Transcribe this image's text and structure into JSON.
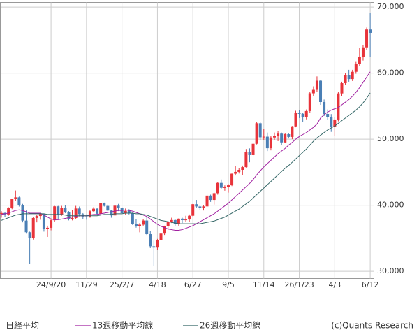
{
  "chart_data": {
    "type": "candlestick",
    "title": "日経平均",
    "credit": "(c)Quants Research",
    "up_color": "#e8333a",
    "down_color": "#4a7fb5",
    "grid": true,
    "legend": "bottom",
    "ylim": [
      28900,
      70700
    ],
    "yticks": [
      {
        "value": 30000,
        "label": "30,000"
      },
      {
        "value": 40000,
        "label": "40,000"
      },
      {
        "value": 50000,
        "label": "50,000"
      },
      {
        "value": 60000,
        "label": "60,000"
      },
      {
        "value": 70000,
        "label": "70,000"
      }
    ],
    "categories": [
      null,
      null,
      null,
      null,
      null,
      null,
      null,
      null,
      null,
      null,
      null,
      null,
      null,
      null,
      "24/9/20",
      null,
      null,
      null,
      null,
      null,
      null,
      null,
      null,
      null,
      "11/29",
      null,
      null,
      null,
      null,
      null,
      null,
      null,
      null,
      null,
      "25/2/7",
      null,
      null,
      null,
      null,
      null,
      null,
      null,
      null,
      null,
      "4/18",
      null,
      null,
      null,
      null,
      null,
      null,
      null,
      null,
      null,
      "6/27",
      null,
      null,
      null,
      null,
      null,
      null,
      null,
      null,
      null,
      "9/5",
      null,
      null,
      null,
      null,
      null,
      null,
      null,
      null,
      null,
      "11/14",
      null,
      null,
      null,
      null,
      null,
      null,
      null,
      null,
      null,
      "26/1/23",
      null,
      null,
      null,
      null,
      null,
      null,
      null,
      null,
      null,
      "4/3",
      null,
      null,
      null,
      null,
      null,
      null,
      null,
      null,
      null,
      "6/12"
    ],
    "ohlc": [
      [
        38700,
        39100,
        38100,
        38814
      ],
      [
        38814,
        38900,
        38200,
        38596
      ],
      [
        38596,
        39700,
        38400,
        39583
      ],
      [
        39583,
        41000,
        39400,
        40912
      ],
      [
        40912,
        42224,
        40600,
        41190
      ],
      [
        41190,
        41300,
        39800,
        40063
      ],
      [
        40063,
        40200,
        37400,
        37667
      ],
      [
        37667,
        39200,
        35700,
        35909
      ],
      [
        35909,
        36000,
        31156,
        35025
      ],
      [
        35025,
        38200,
        34800,
        38062
      ],
      [
        38062,
        38500,
        37400,
        38364
      ],
      [
        38364,
        38800,
        37800,
        38647
      ],
      [
        38647,
        38700,
        36000,
        36391
      ],
      [
        36391,
        36900,
        35200,
        36581
      ],
      [
        36581,
        38000,
        36200,
        37723
      ],
      [
        37723,
        39900,
        37500,
        39829
      ],
      [
        39829,
        39900,
        37800,
        38635
      ],
      [
        38635,
        39900,
        38400,
        39605
      ],
      [
        39605,
        40000,
        38800,
        38981
      ],
      [
        38981,
        39100,
        37700,
        37913
      ],
      [
        37913,
        39300,
        37700,
        38053
      ],
      [
        38053,
        39900,
        37900,
        39500
      ],
      [
        39500,
        39800,
        38300,
        38642
      ],
      [
        38642,
        38800,
        37900,
        38283
      ],
      [
        38283,
        38600,
        37800,
        38208
      ],
      [
        38208,
        39300,
        38100,
        39091
      ],
      [
        39091,
        39700,
        38900,
        39470
      ],
      [
        39470,
        39600,
        38500,
        38701
      ],
      [
        38701,
        40300,
        38600,
        40281
      ],
      [
        40281,
        40400,
        39800,
        39895
      ],
      [
        39895,
        40100,
        39100,
        39190
      ],
      [
        39190,
        39300,
        38100,
        38451
      ],
      [
        38451,
        40200,
        38400,
        39931
      ],
      [
        39931,
        40200,
        39100,
        39572
      ],
      [
        39572,
        39700,
        38700,
        38787
      ],
      [
        38787,
        39500,
        38500,
        39149
      ],
      [
        39149,
        39400,
        38600,
        38776
      ],
      [
        38776,
        38900,
        37000,
        37155
      ],
      [
        37155,
        37900,
        36600,
        36887
      ],
      [
        36887,
        37300,
        35900,
        37053
      ],
      [
        37053,
        37900,
        36900,
        37677
      ],
      [
        37677,
        38200,
        35500,
        35617
      ],
      [
        35617,
        36100,
        33500,
        33780
      ],
      [
        33780,
        34639,
        30792,
        33585
      ],
      [
        33585,
        34900,
        33200,
        34730
      ],
      [
        34730,
        35800,
        34300,
        35705
      ],
      [
        35705,
        36900,
        35500,
        36831
      ],
      [
        36831,
        37600,
        36300,
        37503
      ],
      [
        37503,
        38100,
        37300,
        37753
      ],
      [
        37753,
        37900,
        36900,
        37160
      ],
      [
        37160,
        38000,
        36900,
        37965
      ],
      [
        37965,
        38100,
        37300,
        37741
      ],
      [
        37741,
        38400,
        37500,
        37834
      ],
      [
        37834,
        38600,
        37500,
        38403
      ],
      [
        38403,
        40200,
        38300,
        40150
      ],
      [
        40150,
        40800,
        39600,
        39810
      ],
      [
        39810,
        40000,
        39300,
        39569
      ],
      [
        39569,
        40000,
        39200,
        39819
      ],
      [
        39819,
        41800,
        39700,
        41456
      ],
      [
        41456,
        41600,
        40500,
        40800
      ],
      [
        40800,
        41900,
        40100,
        41820
      ],
      [
        41820,
        43500,
        41600,
        43378
      ],
      [
        43378,
        43900,
        42400,
        42633
      ],
      [
        42633,
        43000,
        42200,
        42718
      ],
      [
        42718,
        43200,
        41900,
        43018
      ],
      [
        43018,
        44800,
        42900,
        44768
      ],
      [
        44768,
        45900,
        44500,
        45045
      ],
      [
        45045,
        45600,
        44800,
        45355
      ],
      [
        45355,
        46000,
        44600,
        45769
      ],
      [
        45769,
        48500,
        45700,
        48088
      ],
      [
        48088,
        48600,
        46500,
        47582
      ],
      [
        47582,
        49500,
        47400,
        49299
      ],
      [
        49299,
        52636,
        49200,
        52411
      ],
      [
        52411,
        52600,
        49800,
        50276
      ],
      [
        50276,
        51500,
        49800,
        50376
      ],
      [
        50376,
        51000,
        48200,
        48625
      ],
      [
        48625,
        50500,
        48300,
        50253
      ],
      [
        50253,
        51000,
        49800,
        50491
      ],
      [
        50491,
        51200,
        49700,
        50836
      ],
      [
        50836,
        51000,
        49100,
        49507
      ],
      [
        49507,
        50900,
        49400,
        50750
      ],
      [
        50750,
        50900,
        50100,
        50339
      ],
      [
        50339,
        52000,
        50000,
        51940
      ],
      [
        51940,
        54300,
        51800,
        53936
      ],
      [
        53936,
        54400,
        53200,
        53846
      ],
      [
        53846,
        54000,
        52600,
        53322
      ],
      [
        53322,
        54500,
        53000,
        54254
      ],
      [
        54254,
        57200,
        54000,
        56941
      ],
      [
        56941,
        58000,
        56500,
        57467
      ],
      [
        57467,
        59500,
        57200,
        58850
      ],
      [
        58850,
        59000,
        55200,
        55620
      ],
      [
        55620,
        56000,
        53500,
        53819
      ],
      [
        53819,
        54500,
        52900,
        53372
      ],
      [
        53372,
        53800,
        51100,
        51885
      ],
      [
        51885,
        53300,
        50500,
        52980
      ],
      [
        52980,
        57100,
        52700,
        56924
      ],
      [
        56924,
        58700,
        56500,
        58475
      ],
      [
        58475,
        60000,
        58200,
        59716
      ],
      [
        59716,
        60500,
        58700,
        59100
      ],
      [
        59100,
        60500,
        58800,
        60200
      ],
      [
        60200,
        61800,
        59900,
        61400
      ],
      [
        61400,
        63800,
        61100,
        62500
      ],
      [
        62500,
        64300,
        61900,
        63900
      ],
      [
        63900,
        66900,
        63500,
        66600
      ],
      [
        66600,
        69100,
        62500,
        66100
      ]
    ],
    "series": [
      {
        "name": "13週移動平均線",
        "color": "#a020a0",
        "values": [
          38600,
          38700,
          38800,
          39000,
          39200,
          39300,
          39200,
          39000,
          38800,
          38800,
          38800,
          38800,
          38500,
          38200,
          37900,
          37800,
          37800,
          37900,
          38000,
          38100,
          38200,
          38300,
          38400,
          38400,
          38400,
          38500,
          38600,
          38600,
          38700,
          38800,
          38900,
          39000,
          39100,
          39200,
          39200,
          39300,
          39200,
          39100,
          38900,
          38700,
          38500,
          38300,
          37900,
          37500,
          37100,
          36800,
          36600,
          36400,
          36300,
          36200,
          36200,
          36300,
          36500,
          36700,
          36900,
          37200,
          37500,
          37800,
          38100,
          38400,
          38700,
          39100,
          39500,
          39900,
          40300,
          40800,
          41300,
          41800,
          42300,
          42800,
          43300,
          43900,
          44600,
          45200,
          45800,
          46300,
          46800,
          47300,
          47800,
          48200,
          48600,
          49100,
          49500,
          50000,
          50400,
          50700,
          51000,
          51400,
          51800,
          52300,
          53200,
          53700,
          54100,
          54400,
          54600,
          54800,
          55200,
          55600,
          56000,
          56500,
          57100,
          57800,
          58600,
          59400,
          60200
        ]
      },
      {
        "name": "26週移動平均線",
        "color": "#336666",
        "values": [
          37700,
          37900,
          38100,
          38300,
          38500,
          38600,
          38700,
          38700,
          38700,
          38700,
          38700,
          38700,
          38700,
          38600,
          38600,
          38600,
          38600,
          38600,
          38500,
          38400,
          38400,
          38400,
          38400,
          38400,
          38400,
          38400,
          38400,
          38400,
          38500,
          38600,
          38600,
          38600,
          38700,
          38700,
          38700,
          38800,
          38800,
          38800,
          38700,
          38700,
          38600,
          38500,
          38300,
          38100,
          37900,
          37700,
          37600,
          37500,
          37400,
          37300,
          37200,
          37200,
          37200,
          37200,
          37200,
          37200,
          37200,
          37300,
          37400,
          37500,
          37600,
          37800,
          38000,
          38200,
          38500,
          38800,
          39100,
          39400,
          39800,
          40200,
          40600,
          41100,
          41600,
          42100,
          42600,
          43100,
          43600,
          44100,
          44600,
          45100,
          45600,
          46000,
          46500,
          47000,
          47500,
          48000,
          48500,
          49100,
          49700,
          50200,
          50600,
          51000,
          51400,
          51700,
          52000,
          52400,
          52800,
          53200,
          53600,
          54000,
          54400,
          54900,
          55500,
          56200,
          57000
        ]
      }
    ]
  }
}
